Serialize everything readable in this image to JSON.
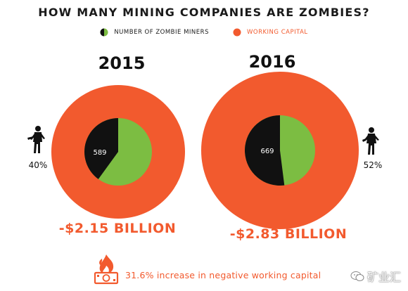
{
  "title": "HOW MANY MINING COMPANIES ARE ZOMBIES?",
  "legend": {
    "zombie_label": "NUMBER OF ZOMBIE MINERS",
    "capital_label": "WORKING CAPITAL"
  },
  "colors": {
    "capital": "#f25a2e",
    "zombie": "#111111",
    "other": "#7cbd42",
    "text": "#111111"
  },
  "chart_data": {
    "type": "pie",
    "charts": [
      {
        "year": "2015",
        "zombie_count": "589",
        "zombie_share": 0.4,
        "zombie_percent": "40%",
        "working_capital": "-$2.15 BILLION",
        "working_capital_value": -2.15
      },
      {
        "year": "2016",
        "zombie_count": "669",
        "zombie_share": 0.52,
        "zombie_percent": "52%",
        "working_capital": "-$2.83 BILLION",
        "working_capital_value": -2.83
      }
    ]
  },
  "footer": {
    "note": "31.6% increase in negative working capital"
  },
  "watermark": {
    "text": "矿业汇",
    "icon": "wechat-icon"
  }
}
